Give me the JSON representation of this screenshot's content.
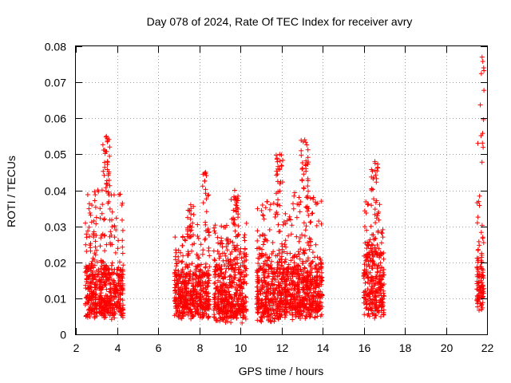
{
  "chart_data": {
    "type": "scatter",
    "title": "Day 078 of 2024, Rate Of TEC Index for receiver avry",
    "xlabel": "GPS time / hours",
    "ylabel": "ROTI / TECUs",
    "xlim": [
      2,
      22
    ],
    "ylim": [
      0,
      0.08
    ],
    "xticks": [
      "2",
      "4",
      "6",
      "8",
      "10",
      "12",
      "14",
      "16",
      "18",
      "20",
      "22"
    ],
    "yticks": [
      "0",
      "0.01",
      "0.02",
      "0.03",
      "0.04",
      "0.05",
      "0.06",
      "0.07",
      "0.08"
    ],
    "grid": true,
    "marker": "+",
    "color": "#ff0000",
    "series": [
      {
        "name": "ROTI",
        "clusters": [
          {
            "x_start": 2.45,
            "x_end": 4.3,
            "typical_min": 0.006,
            "typical_max": 0.018,
            "peak": 0.055
          },
          {
            "x_start": 6.8,
            "x_end": 7.9,
            "typical_min": 0.006,
            "typical_max": 0.016,
            "peak": 0.036
          },
          {
            "x_start": 7.9,
            "x_end": 8.5,
            "typical_min": 0.006,
            "typical_max": 0.016,
            "peak": 0.045
          },
          {
            "x_start": 8.7,
            "x_end": 10.3,
            "typical_min": 0.005,
            "typical_max": 0.018,
            "peak": 0.04
          },
          {
            "x_start": 10.8,
            "x_end": 12.2,
            "typical_min": 0.005,
            "typical_max": 0.018,
            "peak": 0.05
          },
          {
            "x_start": 12.2,
            "x_end": 14.0,
            "typical_min": 0.006,
            "typical_max": 0.018,
            "peak": 0.054
          },
          {
            "x_start": 16.0,
            "x_end": 17.0,
            "typical_min": 0.006,
            "typical_max": 0.022,
            "peak": 0.048
          },
          {
            "x_start": 21.5,
            "x_end": 21.85,
            "typical_min": 0.008,
            "typical_max": 0.02,
            "peak": 0.077
          }
        ]
      }
    ]
  }
}
